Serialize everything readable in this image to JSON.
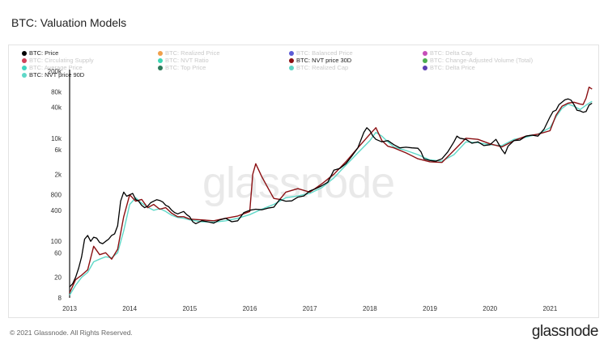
{
  "page": {
    "title": "BTC: Valuation Models",
    "copyright": "© 2021 Glassnode. All Rights Reserved.",
    "brand": "glassnode",
    "watermark": "glassnode"
  },
  "legend": [
    {
      "label": "BTC: Price",
      "color": "#000000",
      "active": true
    },
    {
      "label": "BTC: Realized Price",
      "color": "#f0a04b",
      "active": false
    },
    {
      "label": "BTC: Balanced Price",
      "color": "#5b5bd6",
      "active": false
    },
    {
      "label": "BTC: Delta Cap",
      "color": "#c64fb8",
      "active": false
    },
    {
      "label": "BTC: Circulating Supply",
      "color": "#d0425a",
      "active": false
    },
    {
      "label": "BTC: NVT Ratio",
      "color": "#3ed6b4",
      "active": false
    },
    {
      "label": "BTC: NVT price 30D",
      "color": "#8b0f12",
      "active": true
    },
    {
      "label": "BTC: Change-Adjusted Volume (Total)",
      "color": "#4caf50",
      "active": false
    },
    {
      "label": "BTC: Average Price",
      "color": "#3fd4c0",
      "active": false
    },
    {
      "label": "BTC: Top Price",
      "color": "#2d7a5a",
      "active": false
    },
    {
      "label": "BTC: Realized Cap",
      "color": "#5fd6c6",
      "active": false
    },
    {
      "label": "BTC: Delta Price",
      "color": "#5b3fb0",
      "active": false
    },
    {
      "label": "BTC: NVT price 90D",
      "color": "#5fd8c8",
      "active": true
    }
  ],
  "chart_data": {
    "type": "line",
    "title": "BTC: Valuation Models",
    "y_scale": "log",
    "ylim": [
      8,
      200000
    ],
    "xlim": [
      2013.0,
      2021.75
    ],
    "x_ticks": [
      {
        "value": 2013,
        "label": "2013"
      },
      {
        "value": 2014,
        "label": "2014"
      },
      {
        "value": 2015,
        "label": "2015"
      },
      {
        "value": 2016,
        "label": "2016"
      },
      {
        "value": 2017,
        "label": "2017"
      },
      {
        "value": 2018,
        "label": "2018"
      },
      {
        "value": 2019,
        "label": "2019"
      },
      {
        "value": 2020,
        "label": "2020"
      },
      {
        "value": 2021,
        "label": "2021"
      }
    ],
    "y_ticks": [
      {
        "value": 200000,
        "label": "200k"
      },
      {
        "value": 80000,
        "label": "80k"
      },
      {
        "value": 40000,
        "label": "40k"
      },
      {
        "value": 10000,
        "label": "10k"
      },
      {
        "value": 6000,
        "label": "6k"
      },
      {
        "value": 2000,
        "label": "2k"
      },
      {
        "value": 800,
        "label": "800"
      },
      {
        "value": 400,
        "label": "400"
      },
      {
        "value": 100,
        "label": "100"
      },
      {
        "value": 60,
        "label": "60"
      },
      {
        "value": 20,
        "label": "20"
      },
      {
        "value": 8,
        "label": "8"
      }
    ],
    "grid": false,
    "legend_position": "top",
    "series": [
      {
        "name": "BTC: NVT price 90D",
        "color": "#5fd8c8",
        "x": [
          2013.0,
          2013.1,
          2013.2,
          2013.3,
          2013.4,
          2013.5,
          2013.6,
          2013.7,
          2013.8,
          2013.9,
          2014.0,
          2014.1,
          2014.2,
          2014.3,
          2014.4,
          2014.5,
          2014.6,
          2014.7,
          2014.8,
          2014.9,
          2015.0,
          2015.2,
          2015.4,
          2015.6,
          2015.8,
          2016.0,
          2016.2,
          2016.4,
          2016.6,
          2016.8,
          2017.0,
          2017.2,
          2017.4,
          2017.6,
          2017.8,
          2018.0,
          2018.1,
          2018.2,
          2018.3,
          2018.4,
          2018.6,
          2018.8,
          2019.0,
          2019.2,
          2019.4,
          2019.6,
          2019.8,
          2020.0,
          2020.2,
          2020.4,
          2020.6,
          2020.8,
          2021.0,
          2021.1,
          2021.2,
          2021.3,
          2021.4,
          2021.5,
          2021.6,
          2021.7
        ],
        "y": [
          9,
          14,
          20,
          25,
          40,
          45,
          50,
          48,
          60,
          160,
          520,
          700,
          550,
          460,
          400,
          430,
          380,
          320,
          290,
          280,
          260,
          240,
          235,
          250,
          280,
          330,
          420,
          520,
          700,
          760,
          850,
          1100,
          1700,
          3000,
          5200,
          9000,
          13000,
          11000,
          8500,
          6800,
          5800,
          4800,
          3800,
          3600,
          4800,
          8500,
          8200,
          7500,
          7200,
          9500,
          10500,
          12000,
          16000,
          26000,
          38000,
          46000,
          42000,
          36000,
          44000,
          52000
        ]
      },
      {
        "name": "BTC: NVT price 30D",
        "color": "#8b0f12",
        "x": [
          2013.0,
          2013.1,
          2013.2,
          2013.3,
          2013.4,
          2013.5,
          2013.6,
          2013.7,
          2013.8,
          2013.9,
          2014.0,
          2014.1,
          2014.2,
          2014.3,
          2014.4,
          2014.5,
          2014.6,
          2014.7,
          2014.8,
          2014.9,
          2015.0,
          2015.2,
          2015.4,
          2015.6,
          2015.8,
          2016.0,
          2016.05,
          2016.1,
          2016.2,
          2016.3,
          2016.4,
          2016.5,
          2016.6,
          2016.8,
          2017.0,
          2017.2,
          2017.4,
          2017.6,
          2017.8,
          2018.0,
          2018.1,
          2018.2,
          2018.3,
          2018.4,
          2018.6,
          2018.8,
          2019.0,
          2019.2,
          2019.4,
          2019.6,
          2019.8,
          2020.0,
          2020.2,
          2020.4,
          2020.6,
          2020.8,
          2021.0,
          2021.1,
          2021.2,
          2021.3,
          2021.4,
          2021.5,
          2021.55,
          2021.6,
          2021.65,
          2021.7
        ],
        "y": [
          10,
          18,
          22,
          28,
          80,
          55,
          60,
          45,
          70,
          300,
          800,
          600,
          650,
          450,
          520,
          420,
          450,
          350,
          300,
          300,
          270,
          260,
          250,
          280,
          310,
          380,
          2000,
          3200,
          1800,
          1100,
          680,
          650,
          900,
          1050,
          900,
          1300,
          2000,
          3500,
          6500,
          12000,
          16000,
          9000,
          7000,
          6500,
          5200,
          4000,
          3500,
          3400,
          5800,
          10000,
          9500,
          7800,
          6800,
          9000,
          11000,
          12000,
          14000,
          28000,
          42000,
          48000,
          50000,
          46000,
          45000,
          60000,
          98000,
          90000
        ]
      },
      {
        "name": "BTC: Price",
        "color": "#000000",
        "x": [
          2013.0,
          2013.05,
          2013.1,
          2013.15,
          2013.2,
          2013.25,
          2013.3,
          2013.35,
          2013.4,
          2013.45,
          2013.5,
          2013.55,
          2013.6,
          2013.65,
          2013.7,
          2013.75,
          2013.8,
          2013.85,
          2013.9,
          2013.95,
          2014.0,
          2014.05,
          2014.1,
          2014.15,
          2014.2,
          2014.25,
          2014.3,
          2014.35,
          2014.4,
          2014.45,
          2014.5,
          2014.55,
          2014.6,
          2014.65,
          2014.7,
          2014.75,
          2014.8,
          2014.85,
          2014.9,
          2014.95,
          2015.0,
          2015.05,
          2015.1,
          2015.2,
          2015.3,
          2015.4,
          2015.5,
          2015.6,
          2015.7,
          2015.8,
          2015.9,
          2016.0,
          2016.1,
          2016.2,
          2016.3,
          2016.4,
          2016.5,
          2016.6,
          2016.7,
          2016.8,
          2016.9,
          2017.0,
          2017.1,
          2017.2,
          2017.3,
          2017.4,
          2017.5,
          2017.6,
          2017.7,
          2017.8,
          2017.9,
          2017.95,
          2018.0,
          2018.05,
          2018.1,
          2018.2,
          2018.3,
          2018.4,
          2018.5,
          2018.6,
          2018.7,
          2018.8,
          2018.85,
          2018.9,
          2019.0,
          2019.1,
          2019.2,
          2019.3,
          2019.4,
          2019.45,
          2019.5,
          2019.6,
          2019.7,
          2019.8,
          2019.9,
          2020.0,
          2020.1,
          2020.2,
          2020.25,
          2020.3,
          2020.4,
          2020.5,
          2020.6,
          2020.7,
          2020.8,
          2020.9,
          2021.0,
          2021.05,
          2021.1,
          2021.15,
          2021.2,
          2021.25,
          2021.3,
          2021.35,
          2021.4,
          2021.45,
          2021.5,
          2021.55,
          2021.6,
          2021.65,
          2021.7
        ],
        "y": [
          13,
          15,
          20,
          30,
          50,
          110,
          130,
          100,
          120,
          115,
          95,
          90,
          100,
          110,
          130,
          140,
          200,
          600,
          900,
          750,
          800,
          850,
          650,
          600,
          500,
          450,
          480,
          560,
          600,
          640,
          620,
          580,
          500,
          470,
          400,
          360,
          340,
          360,
          380,
          330,
          300,
          240,
          220,
          250,
          240,
          225,
          260,
          280,
          240,
          250,
          360,
          400,
          420,
          410,
          440,
          460,
          650,
          600,
          610,
          720,
          760,
          950,
          1050,
          1200,
          1400,
          2400,
          2600,
          3200,
          4500,
          6500,
          13000,
          16000,
          14000,
          11000,
          9500,
          8500,
          9000,
          7500,
          6500,
          6700,
          6500,
          6400,
          5500,
          4000,
          3700,
          3600,
          4000,
          5500,
          8500,
          11000,
          10000,
          9500,
          8000,
          8500,
          7200,
          7500,
          9500,
          6000,
          5000,
          7000,
          9000,
          9200,
          11000,
          11500,
          11000,
          15000,
          26000,
          33000,
          35000,
          45000,
          50000,
          56000,
          58000,
          55000,
          45000,
          35000,
          34000,
          32000,
          33000,
          44000,
          48000
        ]
      }
    ]
  }
}
